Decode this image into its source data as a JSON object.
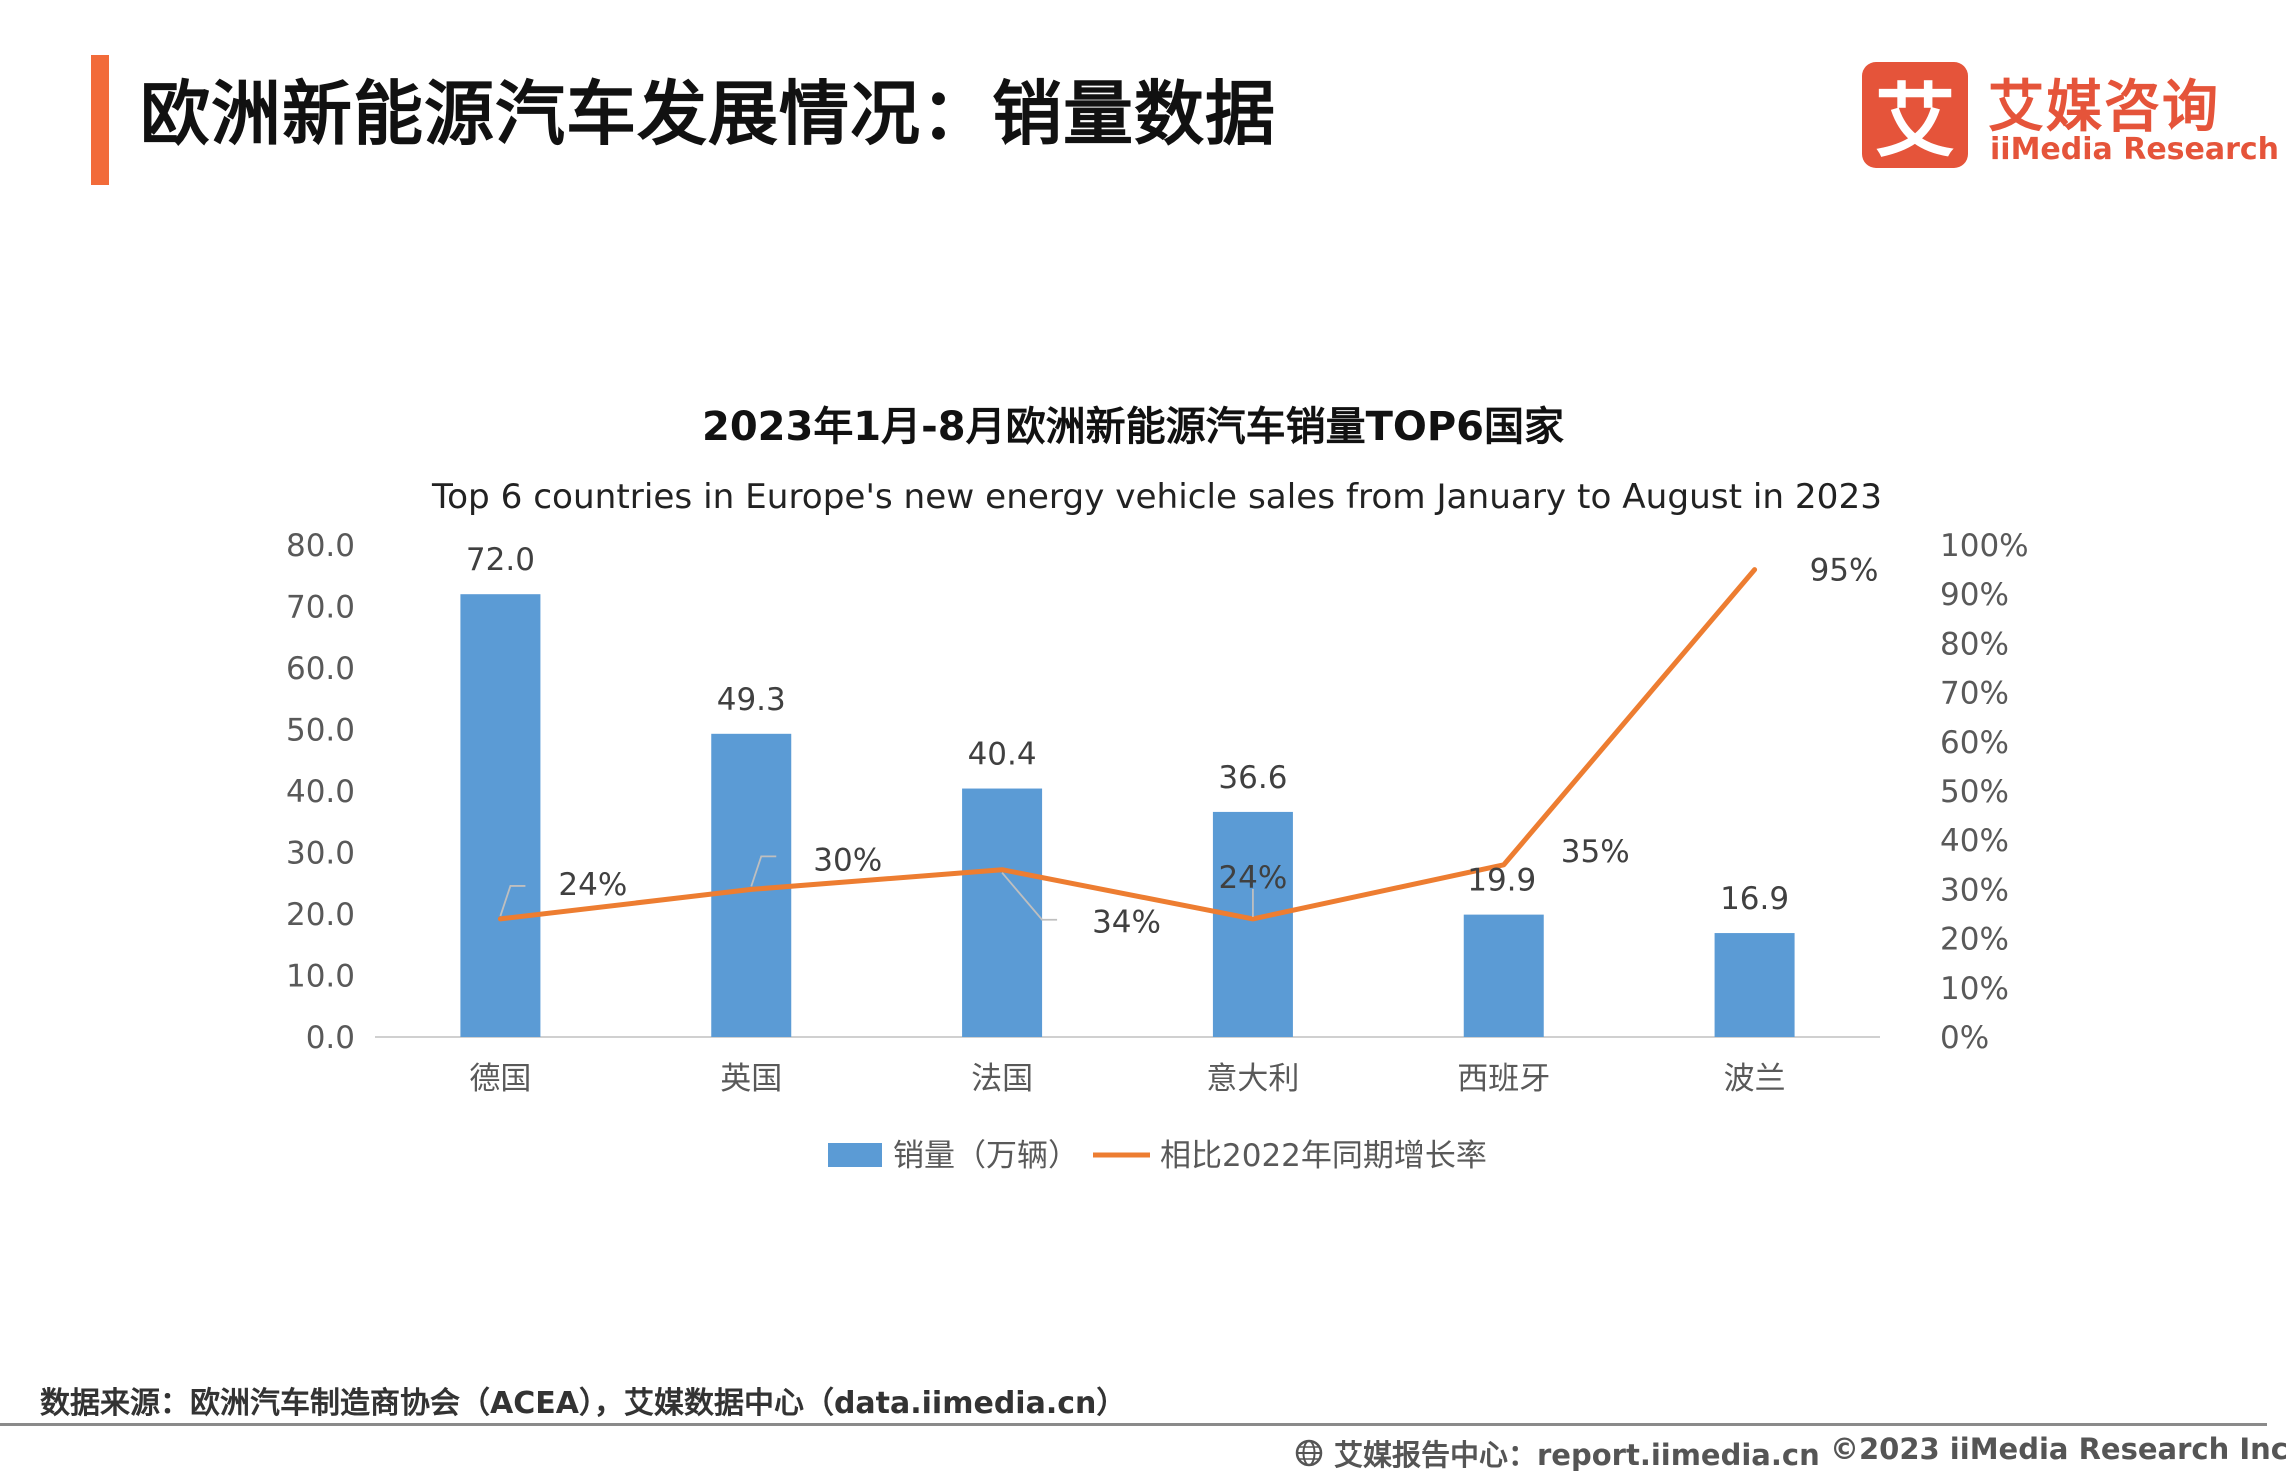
{
  "header": {
    "title": "欧洲新能源汽车发展情况：销量数据",
    "accent_color": "#f26b3a"
  },
  "logo": {
    "mark": "艾",
    "name_cn": "艾媒咨询",
    "name_en": "iiMedia Research",
    "color": "#e5543a"
  },
  "chart_data": {
    "type": "bar",
    "title": "2023年1月-8月欧洲新能源汽车销量TOP6国家",
    "subtitle": "Top 6 countries in Europe's new energy vehicle sales from January to August in 2023",
    "categories": [
      "德国",
      "英国",
      "法国",
      "意大利",
      "西班牙",
      "波兰"
    ],
    "series": [
      {
        "name": "销量（万辆）",
        "type": "bar",
        "axis": "left",
        "color": "#5b9bd5",
        "values": [
          72.0,
          49.3,
          40.4,
          36.6,
          19.9,
          16.9
        ],
        "labels": [
          "72.0",
          "49.3",
          "40.4",
          "36.6",
          "19.9",
          "16.9"
        ]
      },
      {
        "name": "相比2022年同期增长率",
        "type": "line",
        "axis": "right",
        "color": "#ed7d31",
        "values": [
          24,
          30,
          34,
          24,
          35,
          95
        ],
        "labels": [
          "24%",
          "30%",
          "34%",
          "24%",
          "35%",
          "95%"
        ]
      }
    ],
    "ylim": [
      0,
      80
    ],
    "yticks": [
      "0.0",
      "10.0",
      "20.0",
      "30.0",
      "40.0",
      "50.0",
      "60.0",
      "70.0",
      "80.0"
    ],
    "y2lim": [
      0,
      100
    ],
    "y2ticks": [
      "0%",
      "10%",
      "20%",
      "30%",
      "40%",
      "50%",
      "60%",
      "70%",
      "80%",
      "90%",
      "100%"
    ],
    "legend": "bottom-center",
    "grid": false
  },
  "footer": {
    "source": "数据来源：欧洲汽车制造商协会（ACEA），艾媒数据中心（data.iimedia.cn）",
    "report_site": "艾媒报告中心：report.iimedia.cn",
    "copyright": "©2023  iiMedia Research  Inc"
  }
}
